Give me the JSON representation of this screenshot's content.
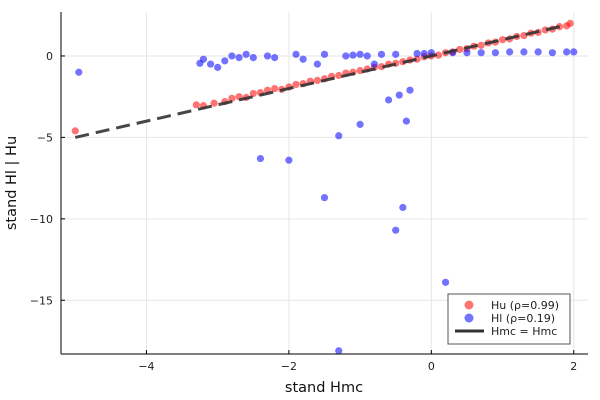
{
  "chart_data": {
    "type": "scatter",
    "title": "",
    "xlabel": "stand Hmc",
    "ylabel": "stand Hl | Hu",
    "xlim": [
      -5.2,
      2.2
    ],
    "ylim": [
      -18.3,
      2.7
    ],
    "xticks": [
      -4,
      -2,
      0,
      2
    ],
    "yticks": [
      0,
      -5,
      -10,
      -15
    ],
    "xtick_labels": [
      "−4",
      "−2",
      "0",
      "2"
    ],
    "ytick_labels": [
      "0",
      "−5",
      "−10",
      "−15"
    ],
    "grid": true,
    "legend_position": "bottom-right",
    "colors": {
      "hu": "#ff0000",
      "hl": "#0000ff",
      "line": "#333333"
    },
    "series": [
      {
        "name": "Hu (ρ=0.99)",
        "kind": "points",
        "points": [
          [
            -5.0,
            -4.6
          ],
          [
            -3.3,
            -3.0
          ],
          [
            -3.2,
            -3.05
          ],
          [
            -3.05,
            -2.9
          ],
          [
            -2.9,
            -2.8
          ],
          [
            -2.8,
            -2.6
          ],
          [
            -2.7,
            -2.5
          ],
          [
            -2.6,
            -2.55
          ],
          [
            -2.5,
            -2.3
          ],
          [
            -2.4,
            -2.25
          ],
          [
            -2.3,
            -2.1
          ],
          [
            -2.2,
            -2.0
          ],
          [
            -2.1,
            -2.05
          ],
          [
            -2.0,
            -1.9
          ],
          [
            -1.9,
            -1.75
          ],
          [
            -1.8,
            -1.7
          ],
          [
            -1.7,
            -1.55
          ],
          [
            -1.6,
            -1.5
          ],
          [
            -1.5,
            -1.4
          ],
          [
            -1.4,
            -1.25
          ],
          [
            -1.3,
            -1.2
          ],
          [
            -1.2,
            -1.05
          ],
          [
            -1.1,
            -1.0
          ],
          [
            -1.0,
            -0.9
          ],
          [
            -0.9,
            -0.8
          ],
          [
            -0.8,
            -0.7
          ],
          [
            -0.7,
            -0.65
          ],
          [
            -0.6,
            -0.5
          ],
          [
            -0.5,
            -0.45
          ],
          [
            -0.4,
            -0.35
          ],
          [
            -0.3,
            -0.25
          ],
          [
            -0.2,
            -0.2
          ],
          [
            -0.1,
            -0.05
          ],
          [
            0.0,
            0.0
          ],
          [
            0.1,
            0.05
          ],
          [
            0.2,
            0.2
          ],
          [
            0.3,
            0.25
          ],
          [
            0.4,
            0.4
          ],
          [
            0.5,
            0.45
          ],
          [
            0.6,
            0.6
          ],
          [
            0.7,
            0.65
          ],
          [
            0.8,
            0.8
          ],
          [
            0.9,
            0.85
          ],
          [
            1.0,
            1.0
          ],
          [
            1.1,
            1.05
          ],
          [
            1.2,
            1.2
          ],
          [
            1.3,
            1.25
          ],
          [
            1.4,
            1.4
          ],
          [
            1.5,
            1.45
          ],
          [
            1.6,
            1.6
          ],
          [
            1.7,
            1.65
          ],
          [
            1.8,
            1.8
          ],
          [
            1.9,
            1.85
          ],
          [
            1.95,
            2.0
          ]
        ]
      },
      {
        "name": "Hl (ρ=0.19)",
        "kind": "points",
        "points": [
          [
            -4.95,
            -1.0
          ],
          [
            -3.25,
            -0.45
          ],
          [
            -3.1,
            -0.5
          ],
          [
            -3.2,
            -0.2
          ],
          [
            -3.0,
            -0.7
          ],
          [
            -2.9,
            -0.3
          ],
          [
            -2.8,
            0.0
          ],
          [
            -2.7,
            -0.1
          ],
          [
            -2.6,
            0.1
          ],
          [
            -2.5,
            -0.1
          ],
          [
            -2.4,
            -6.3
          ],
          [
            -2.3,
            0.0
          ],
          [
            -2.2,
            -0.1
          ],
          [
            -2.0,
            -6.4
          ],
          [
            -1.9,
            0.1
          ],
          [
            -1.8,
            -0.2
          ],
          [
            -1.6,
            -0.5
          ],
          [
            -1.5,
            -8.7
          ],
          [
            -1.5,
            0.1
          ],
          [
            -1.3,
            -18.1
          ],
          [
            -1.3,
            -4.9
          ],
          [
            -1.2,
            0.0
          ],
          [
            -1.1,
            0.05
          ],
          [
            -1.0,
            0.1
          ],
          [
            -1.0,
            -4.2
          ],
          [
            -0.9,
            0.0
          ],
          [
            -0.8,
            -0.5
          ],
          [
            -0.7,
            0.1
          ],
          [
            -0.6,
            -2.7
          ],
          [
            -0.5,
            -10.7
          ],
          [
            -0.5,
            0.1
          ],
          [
            -0.45,
            -2.4
          ],
          [
            -0.4,
            -9.3
          ],
          [
            -0.35,
            -4.0
          ],
          [
            -0.3,
            -2.1
          ],
          [
            -0.2,
            0.15
          ],
          [
            -0.1,
            0.15
          ],
          [
            0.0,
            0.2
          ],
          [
            0.2,
            -13.9
          ],
          [
            0.3,
            0.2
          ],
          [
            0.5,
            0.2
          ],
          [
            0.7,
            0.2
          ],
          [
            0.9,
            0.2
          ],
          [
            1.1,
            0.25
          ],
          [
            1.3,
            0.25
          ],
          [
            1.5,
            0.25
          ],
          [
            1.7,
            0.2
          ],
          [
            1.9,
            0.25
          ],
          [
            2.0,
            0.25
          ]
        ]
      },
      {
        "name": "Hmc = Hmc",
        "kind": "line",
        "style": "dashed",
        "x": [
          -5.0,
          1.9
        ],
        "y": [
          -5.0,
          1.9
        ]
      }
    ]
  }
}
